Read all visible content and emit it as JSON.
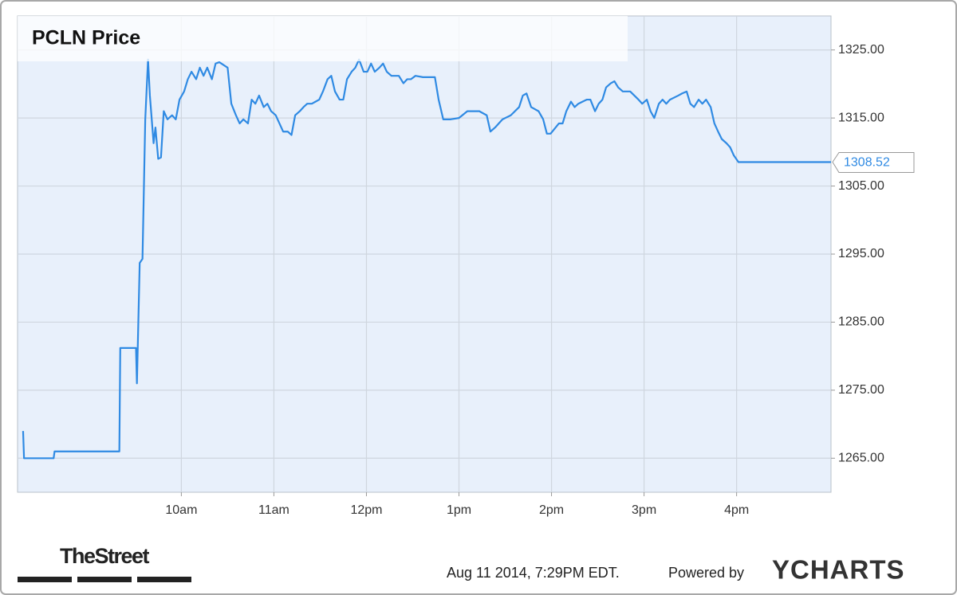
{
  "chart_data": {
    "type": "line",
    "title": "PCLN Price",
    "footer": "Aug 11 2014, 7:29PM EDT.",
    "attribution": "Powered by",
    "brand": "YCHARTS",
    "logo": "TheStreet",
    "grid": true,
    "xlim": [
      8.23,
      17.02
    ],
    "ylim": [
      1260,
      1330
    ],
    "xticks": [
      {
        "value": 10,
        "label": "10am"
      },
      {
        "value": 11,
        "label": "11am"
      },
      {
        "value": 12,
        "label": "12pm"
      },
      {
        "value": 13,
        "label": "1pm"
      },
      {
        "value": 14,
        "label": "2pm"
      },
      {
        "value": 15,
        "label": "3pm"
      },
      {
        "value": 16,
        "label": "4pm"
      }
    ],
    "yticks": [
      {
        "value": 1265,
        "label": "1265.00"
      },
      {
        "value": 1275,
        "label": "1275.00"
      },
      {
        "value": 1285,
        "label": "1285.00"
      },
      {
        "value": 1295,
        "label": "1295.00"
      },
      {
        "value": 1305,
        "label": "1305.00"
      },
      {
        "value": 1315,
        "label": "1315.00"
      },
      {
        "value": 1325,
        "label": "1325.00"
      }
    ],
    "x": [
      8.29,
      8.3,
      8.62,
      8.63,
      9.33,
      9.34,
      9.51,
      9.52,
      9.55,
      9.58,
      9.61,
      9.64,
      9.66,
      9.7,
      9.72,
      9.75,
      9.78,
      9.81,
      9.85,
      9.9,
      9.94,
      9.98,
      10.03,
      10.07,
      10.11,
      10.16,
      10.2,
      10.24,
      10.28,
      10.33,
      10.37,
      10.41,
      10.5,
      10.54,
      10.59,
      10.63,
      10.67,
      10.72,
      10.76,
      10.8,
      10.84,
      10.89,
      10.93,
      10.97,
      11.02,
      11.06,
      11.1,
      11.15,
      11.19,
      11.23,
      11.28,
      11.32,
      11.36,
      11.41,
      11.45,
      11.49,
      11.53,
      11.58,
      11.62,
      11.66,
      11.71,
      11.75,
      11.79,
      11.84,
      11.88,
      11.92,
      11.97,
      12.01,
      12.05,
      12.09,
      12.14,
      12.18,
      12.22,
      12.27,
      12.35,
      12.4,
      12.44,
      12.48,
      12.53,
      12.61,
      12.74,
      12.78,
      12.83,
      12.91,
      13.0,
      13.09,
      13.22,
      13.3,
      13.34,
      13.39,
      13.47,
      13.56,
      13.65,
      13.69,
      13.73,
      13.78,
      13.86,
      13.91,
      13.95,
      13.99,
      14.08,
      14.12,
      14.16,
      14.21,
      14.25,
      14.29,
      14.38,
      14.42,
      14.47,
      14.51,
      14.55,
      14.59,
      14.64,
      14.68,
      14.72,
      14.77,
      14.85,
      14.94,
      14.98,
      15.03,
      15.07,
      15.11,
      15.16,
      15.2,
      15.24,
      15.28,
      15.37,
      15.41,
      15.46,
      15.5,
      15.54,
      15.59,
      15.63,
      15.67,
      15.72,
      15.76,
      15.8,
      15.84,
      15.89,
      15.93,
      15.97,
      16.02,
      17.02
    ],
    "series": [
      {
        "color": "#2f8ae3",
        "values": [
          1269,
          1265,
          1265,
          1266,
          1266,
          1281.2,
          1281.2,
          1276,
          1293.7,
          1294.3,
          1314.8,
          1323.6,
          1318.3,
          1311.3,
          1313.6,
          1309.0,
          1309.2,
          1316.0,
          1314.8,
          1315.4,
          1314.8,
          1317.7,
          1318.9,
          1320.7,
          1321.8,
          1320.7,
          1322.4,
          1321.2,
          1322.4,
          1320.7,
          1323.0,
          1323.2,
          1322.4,
          1317.1,
          1315.4,
          1314.2,
          1314.8,
          1314.2,
          1317.7,
          1317.1,
          1318.3,
          1316.6,
          1317.1,
          1316.0,
          1315.4,
          1314.2,
          1313.0,
          1313.0,
          1312.5,
          1315.4,
          1316.0,
          1316.6,
          1317.1,
          1317.1,
          1317.4,
          1317.7,
          1318.9,
          1320.7,
          1321.2,
          1318.9,
          1317.7,
          1317.7,
          1320.7,
          1321.8,
          1322.4,
          1323.6,
          1321.8,
          1321.8,
          1323.0,
          1321.8,
          1322.4,
          1323.0,
          1321.8,
          1321.2,
          1321.2,
          1320.1,
          1320.7,
          1320.7,
          1321.2,
          1321.0,
          1321.0,
          1317.7,
          1314.8,
          1314.8,
          1315.0,
          1316.0,
          1316.0,
          1315.4,
          1313.0,
          1313.6,
          1314.8,
          1315.4,
          1316.6,
          1318.3,
          1318.6,
          1316.6,
          1316.0,
          1314.8,
          1312.7,
          1312.7,
          1314.2,
          1314.2,
          1316.0,
          1317.4,
          1316.6,
          1317.1,
          1317.7,
          1317.7,
          1316.0,
          1317.1,
          1317.7,
          1319.5,
          1320.1,
          1320.4,
          1319.5,
          1318.9,
          1318.9,
          1317.7,
          1317.1,
          1317.7,
          1316.0,
          1315.0,
          1317.1,
          1317.7,
          1317.1,
          1317.7,
          1318.3,
          1318.6,
          1318.9,
          1317.1,
          1316.6,
          1317.7,
          1317.1,
          1317.7,
          1316.6,
          1314.2,
          1313.0,
          1311.9,
          1311.3,
          1310.7,
          1309.5,
          1308.52,
          1308.52
        ]
      }
    ]
  }
}
